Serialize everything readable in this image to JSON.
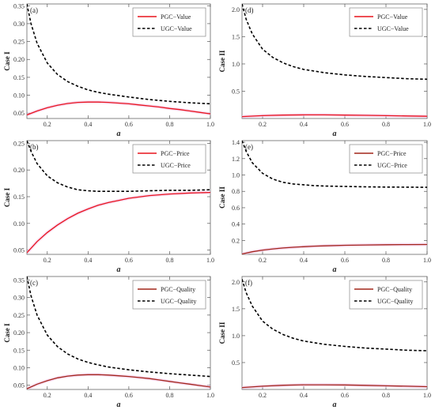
{
  "chart_data": [
    {
      "id": "a",
      "type": "line",
      "panel_label": "(a)",
      "xlabel": "a",
      "ylabel": "Case I",
      "xlim": [
        0.1,
        1.0
      ],
      "ylim": [
        0.035,
        0.355
      ],
      "xticks": [
        0.2,
        0.4,
        0.6,
        0.8,
        1.0
      ],
      "yticks": [
        0.05,
        0.1,
        0.15,
        0.2,
        0.25,
        0.3,
        0.35
      ],
      "legend_position": "top-right",
      "series": [
        {
          "name": "PGC−Value",
          "color": "#e8141c",
          "dash": "solid",
          "x": [
            0.1,
            0.15,
            0.2,
            0.25,
            0.3,
            0.35,
            0.4,
            0.45,
            0.5,
            0.55,
            0.6,
            0.65,
            0.7,
            0.75,
            0.8,
            0.85,
            0.9,
            0.95,
            1.0
          ],
          "y": [
            0.045,
            0.056,
            0.065,
            0.072,
            0.077,
            0.08,
            0.081,
            0.081,
            0.08,
            0.078,
            0.076,
            0.073,
            0.07,
            0.067,
            0.063,
            0.06,
            0.056,
            0.052,
            0.048
          ]
        },
        {
          "name": "UGC−Value",
          "color": "#000000",
          "dash": "dashed",
          "x": [
            0.1,
            0.12,
            0.15,
            0.2,
            0.25,
            0.3,
            0.35,
            0.4,
            0.45,
            0.5,
            0.6,
            0.7,
            0.8,
            0.9,
            1.0
          ],
          "y": [
            0.355,
            0.3,
            0.245,
            0.19,
            0.158,
            0.138,
            0.125,
            0.115,
            0.108,
            0.103,
            0.095,
            0.088,
            0.083,
            0.079,
            0.076
          ]
        }
      ]
    },
    {
      "id": "d",
      "type": "line",
      "panel_label": "(d)",
      "xlabel": "a",
      "ylabel": "Case II",
      "xlim": [
        0.1,
        1.0
      ],
      "ylim": [
        0.0,
        2.1
      ],
      "xticks": [
        0.2,
        0.4,
        0.6,
        0.8,
        1.0
      ],
      "yticks": [
        0.5,
        1.0,
        1.5,
        2.0
      ],
      "legend_position": "top-right",
      "series": [
        {
          "name": "PGC−Value",
          "color": "#e8141c",
          "dash": "solid",
          "x": [
            0.1,
            0.2,
            0.3,
            0.4,
            0.5,
            0.6,
            0.7,
            0.8,
            0.9,
            1.0
          ],
          "y": [
            0.035,
            0.052,
            0.062,
            0.066,
            0.066,
            0.063,
            0.058,
            0.052,
            0.046,
            0.04
          ]
        },
        {
          "name": "UGC−Value",
          "color": "#000000",
          "dash": "dashed",
          "x": [
            0.1,
            0.12,
            0.15,
            0.2,
            0.25,
            0.3,
            0.35,
            0.4,
            0.45,
            0.5,
            0.6,
            0.7,
            0.8,
            0.9,
            1.0
          ],
          "y": [
            2.1,
            1.82,
            1.55,
            1.27,
            1.12,
            1.02,
            0.95,
            0.9,
            0.87,
            0.84,
            0.8,
            0.77,
            0.75,
            0.73,
            0.72
          ]
        }
      ]
    },
    {
      "id": "b",
      "type": "line",
      "panel_label": "(b)",
      "xlabel": "a",
      "ylabel": "Case I",
      "xlim": [
        0.1,
        1.0
      ],
      "ylim": [
        0.042,
        0.255
      ],
      "xticks": [
        0.2,
        0.4,
        0.6,
        0.8,
        1.0
      ],
      "yticks": [
        0.05,
        0.1,
        0.15,
        0.2,
        0.25
      ],
      "legend_position": "top-right",
      "series": [
        {
          "name": "PGC−Price",
          "color": "#e8141c",
          "dash": "solid",
          "x": [
            0.1,
            0.15,
            0.2,
            0.25,
            0.3,
            0.35,
            0.4,
            0.45,
            0.5,
            0.55,
            0.6,
            0.7,
            0.8,
            0.9,
            1.0
          ],
          "y": [
            0.045,
            0.066,
            0.083,
            0.097,
            0.109,
            0.119,
            0.127,
            0.134,
            0.139,
            0.143,
            0.147,
            0.152,
            0.155,
            0.157,
            0.158
          ]
        },
        {
          "name": "UGC−Price",
          "color": "#000000",
          "dash": "dashed",
          "x": [
            0.1,
            0.12,
            0.15,
            0.2,
            0.25,
            0.3,
            0.35,
            0.4,
            0.45,
            0.5,
            0.6,
            0.7,
            0.8,
            0.9,
            1.0
          ],
          "y": [
            0.255,
            0.235,
            0.212,
            0.189,
            0.176,
            0.168,
            0.163,
            0.161,
            0.16,
            0.16,
            0.16,
            0.161,
            0.162,
            0.162,
            0.163
          ]
        }
      ]
    },
    {
      "id": "e",
      "type": "line",
      "panel_label": "(e)",
      "xlabel": "a",
      "ylabel": "Case II",
      "xlim": [
        0.1,
        1.0
      ],
      "ylim": [
        0.03,
        1.42
      ],
      "xticks": [
        0.2,
        0.4,
        0.6,
        0.8,
        1.0
      ],
      "yticks": [
        0.2,
        0.4,
        0.6,
        0.8,
        1.0,
        1.2,
        1.4
      ],
      "legend_position": "top-right",
      "series": [
        {
          "name": "PGC−Price",
          "color": "#a2261a",
          "dash": "solid",
          "x": [
            0.1,
            0.15,
            0.2,
            0.25,
            0.3,
            0.35,
            0.4,
            0.45,
            0.5,
            0.6,
            0.7,
            0.8,
            0.9,
            1.0
          ],
          "y": [
            0.035,
            0.062,
            0.082,
            0.097,
            0.108,
            0.117,
            0.124,
            0.13,
            0.134,
            0.141,
            0.145,
            0.148,
            0.15,
            0.151
          ]
        },
        {
          "name": "UGC−Price",
          "color": "#000000",
          "dash": "dashed",
          "x": [
            0.1,
            0.12,
            0.15,
            0.2,
            0.25,
            0.3,
            0.35,
            0.4,
            0.45,
            0.5,
            0.6,
            0.7,
            0.8,
            0.9,
            1.0
          ],
          "y": [
            1.42,
            1.29,
            1.15,
            1.02,
            0.95,
            0.91,
            0.89,
            0.88,
            0.87,
            0.865,
            0.86,
            0.855,
            0.852,
            0.851,
            0.85
          ]
        }
      ]
    },
    {
      "id": "c",
      "type": "line",
      "panel_label": "(c)",
      "xlabel": "a",
      "ylabel": "Case I",
      "xlim": [
        0.1,
        1.0
      ],
      "ylim": [
        0.038,
        0.36
      ],
      "xticks": [
        0.2,
        0.4,
        0.6,
        0.8,
        1.0
      ],
      "yticks": [
        0.05,
        0.1,
        0.15,
        0.2,
        0.25,
        0.3,
        0.35
      ],
      "legend_position": "top-right",
      "series": [
        {
          "name": "PGC−Quality",
          "color": "#a2261a",
          "dash": "solid",
          "x": [
            0.1,
            0.15,
            0.2,
            0.25,
            0.3,
            0.35,
            0.4,
            0.45,
            0.5,
            0.55,
            0.6,
            0.65,
            0.7,
            0.75,
            0.8,
            0.85,
            0.9,
            0.95,
            1.0
          ],
          "y": [
            0.04,
            0.053,
            0.063,
            0.071,
            0.076,
            0.079,
            0.08,
            0.08,
            0.079,
            0.077,
            0.075,
            0.072,
            0.069,
            0.065,
            0.061,
            0.057,
            0.053,
            0.049,
            0.045
          ]
        },
        {
          "name": "UGC−Quality",
          "color": "#000000",
          "dash": "dashed",
          "x": [
            0.1,
            0.12,
            0.15,
            0.2,
            0.25,
            0.3,
            0.35,
            0.4,
            0.45,
            0.5,
            0.6,
            0.7,
            0.8,
            0.9,
            1.0
          ],
          "y": [
            0.36,
            0.305,
            0.25,
            0.193,
            0.16,
            0.139,
            0.125,
            0.115,
            0.108,
            0.102,
            0.094,
            0.088,
            0.083,
            0.079,
            0.075
          ]
        }
      ]
    },
    {
      "id": "f",
      "type": "line",
      "panel_label": "(f)",
      "xlabel": "a",
      "ylabel": "Case II",
      "xlim": [
        0.1,
        1.0
      ],
      "ylim": [
        0.0,
        2.1
      ],
      "xticks": [
        0.2,
        0.4,
        0.6,
        0.8,
        1.0
      ],
      "yticks": [
        0.5,
        1.0,
        1.5,
        2.0
      ],
      "legend_position": "top-right",
      "series": [
        {
          "name": "PGC−Quality",
          "color": "#a2261a",
          "dash": "solid",
          "x": [
            0.1,
            0.2,
            0.3,
            0.4,
            0.5,
            0.6,
            0.7,
            0.8,
            0.9,
            1.0
          ],
          "y": [
            0.035,
            0.06,
            0.078,
            0.086,
            0.087,
            0.083,
            0.076,
            0.068,
            0.06,
            0.052
          ]
        },
        {
          "name": "UGC−Quality",
          "color": "#000000",
          "dash": "dashed",
          "x": [
            0.1,
            0.12,
            0.15,
            0.2,
            0.25,
            0.3,
            0.35,
            0.4,
            0.45,
            0.5,
            0.6,
            0.7,
            0.8,
            0.9,
            1.0
          ],
          "y": [
            2.05,
            1.8,
            1.55,
            1.27,
            1.12,
            1.02,
            0.95,
            0.9,
            0.87,
            0.84,
            0.8,
            0.77,
            0.75,
            0.73,
            0.72
          ]
        }
      ]
    }
  ]
}
